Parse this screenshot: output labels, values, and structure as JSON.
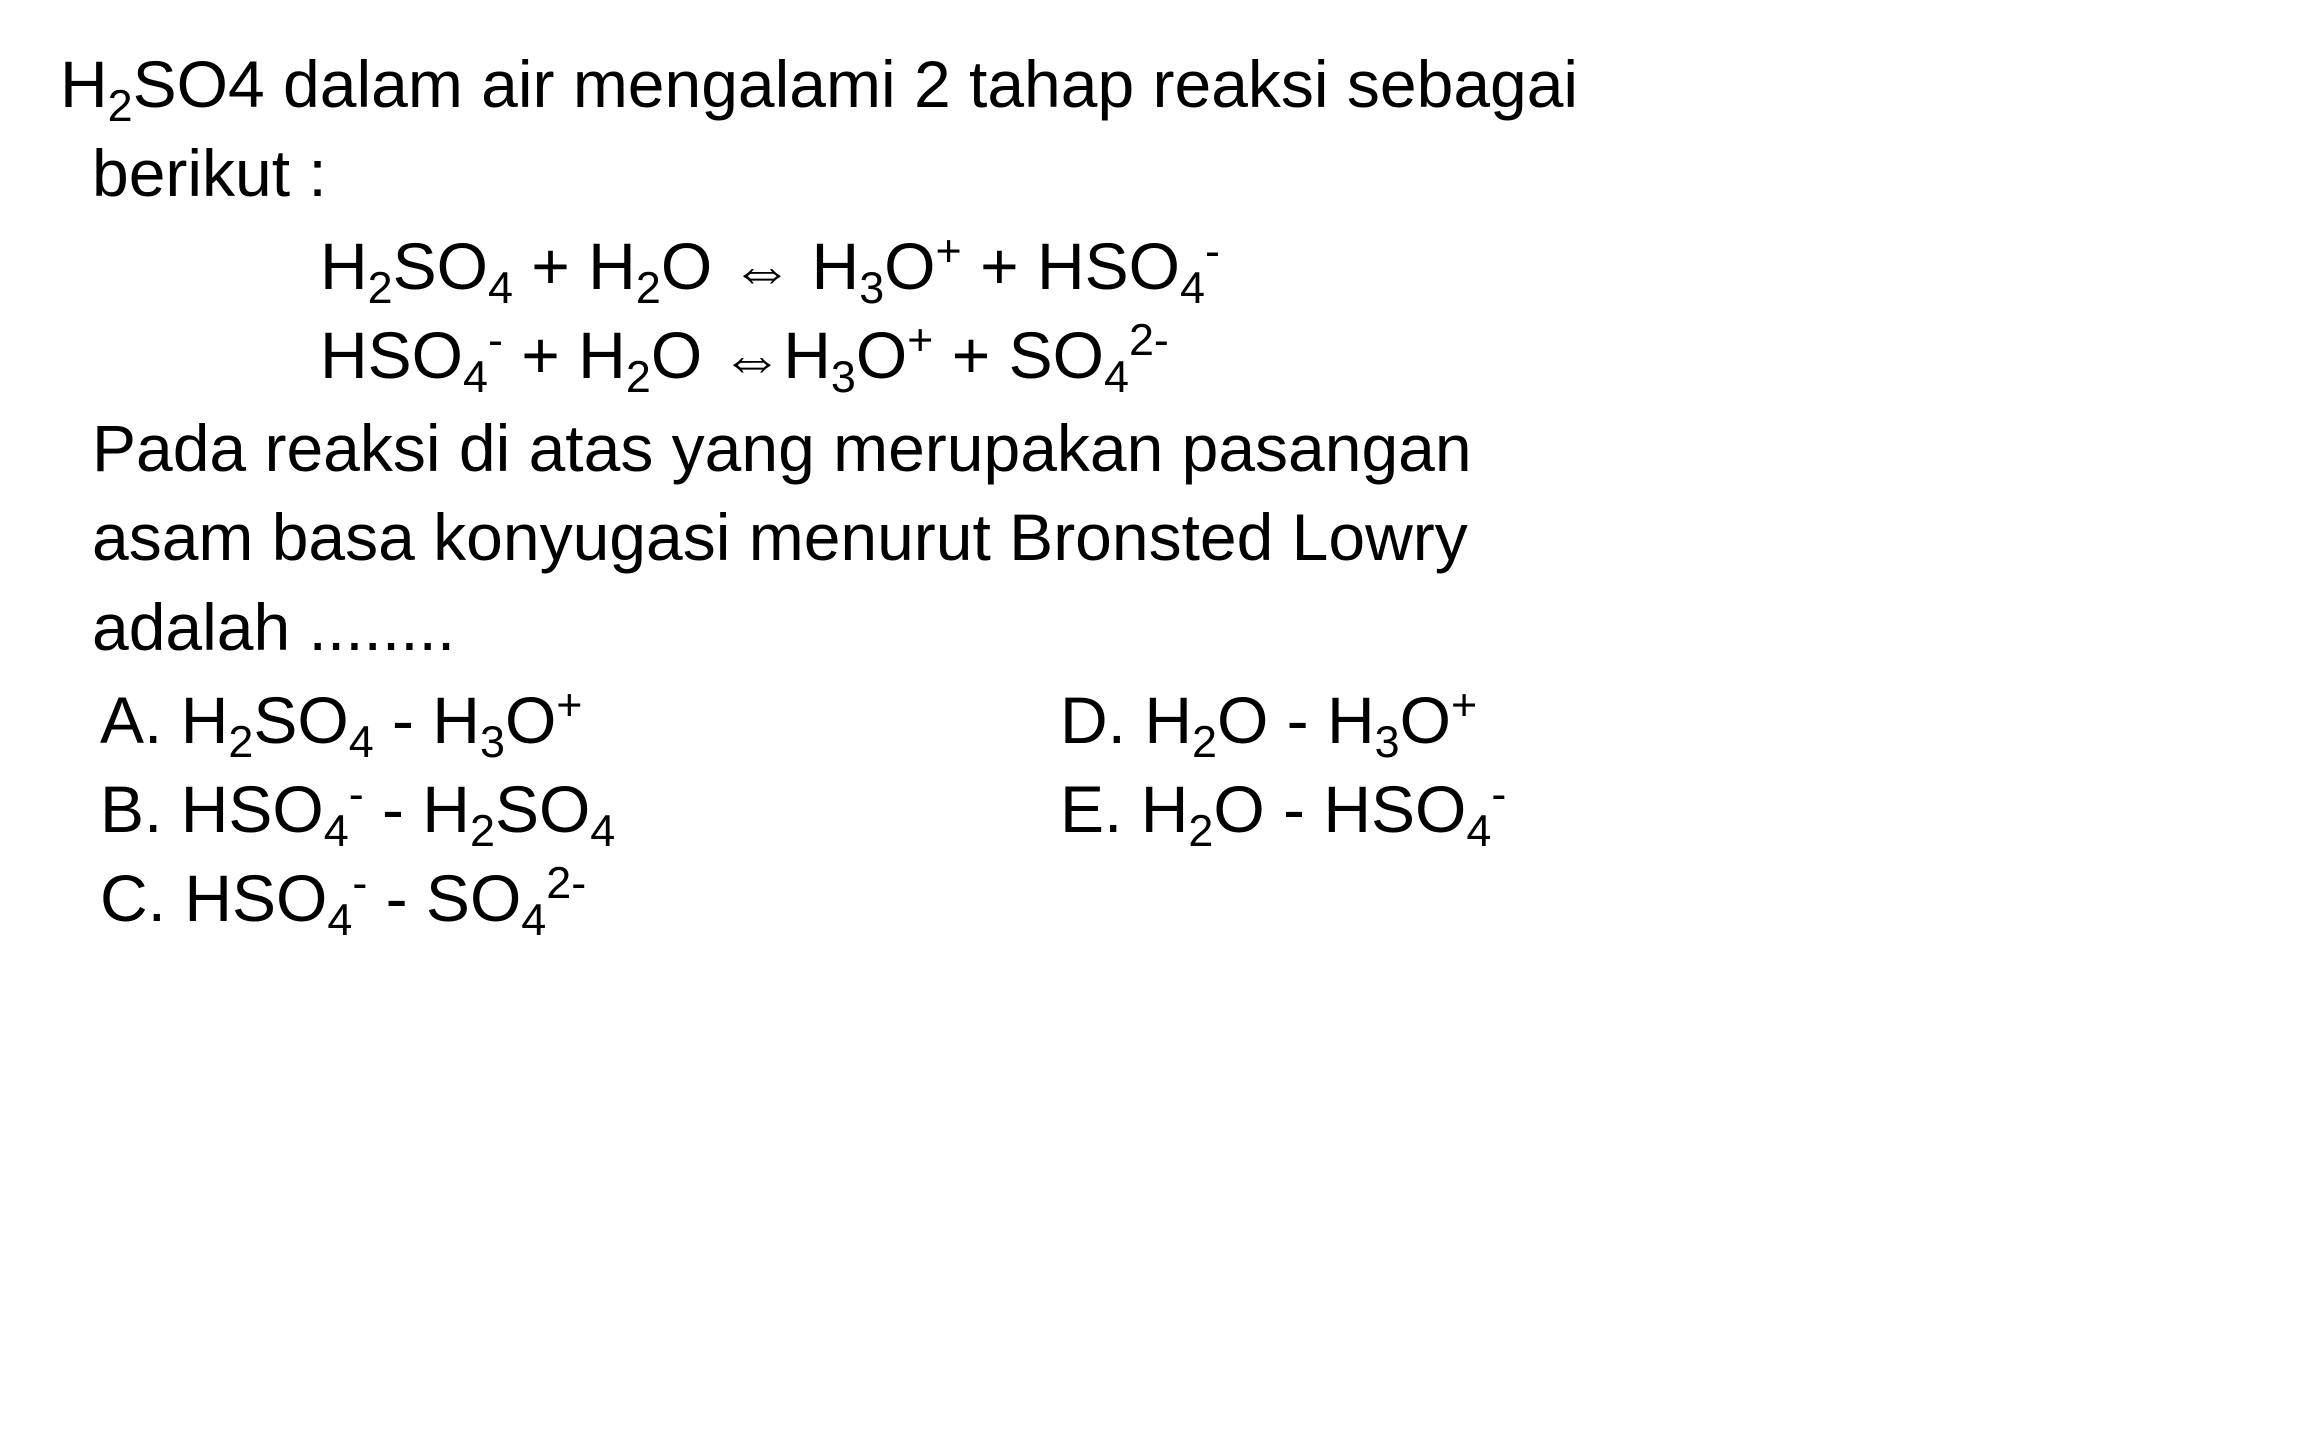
{
  "intro": {
    "line1_pre": "H",
    "line1_sub": "2",
    "line1_post": "SO4 dalam air mengalami 2 tahap reaksi sebagai",
    "line2": "berikut :"
  },
  "eq1": {
    "s1": "H",
    "s1sub": "2",
    "s2": "SO",
    "s2sub": "4",
    "s3": " + H",
    "s3sub": "2",
    "s4": "O  ",
    "arrow": "⇔",
    "s5": " H",
    "s5sub": "3",
    "s6": "O",
    "s6sup": "+",
    "s7": " + HSO",
    "s7sub": "4",
    "s7sup": "-"
  },
  "eq2": {
    "s1": "HSO",
    "s1sub": "4",
    "s1sup": "-",
    "s2": " + H",
    "s2sub": "2",
    "s3": "O  ",
    "arrow": "⇔",
    "s4": "H",
    "s4sub": "3",
    "s5": "O",
    "s5sup": "+",
    "s6": " + SO",
    "s6sub": "4",
    "s6sup": "2-"
  },
  "stem": {
    "l1": "Pada reaksi di atas yang merupakan pasangan",
    "l2": "asam basa konyugasi menurut Bronsted   Lowry",
    "l3": "adalah ........"
  },
  "optA": {
    "label": "A. H",
    "a1sub": "2",
    "a2": "SO",
    "a2sub": "4",
    "a3": " - H",
    "a3sub": "3",
    "a4": "O",
    "a4sup": "+"
  },
  "optB": {
    "label": "B. HSO",
    "b1sub": "4",
    "b1sup": "-",
    "b2": " - H",
    "b2sub": "2",
    "b3": "SO",
    "b3sub": "4"
  },
  "optC": {
    "label": "C. HSO",
    "c1sub": "4",
    "c1sup": "-",
    "c2": " - SO",
    "c2sub": "4",
    "c2sup": "2-"
  },
  "optD": {
    "label": "D. H",
    "d1sub": "2",
    "d2": "O - H",
    "d2sub": "3",
    "d3": "O",
    "d3sup": "+"
  },
  "optE": {
    "label": "E. H",
    "e1sub": "2",
    "e2": "O - HSO",
    "e2sub": "4",
    "e2sup": "-"
  },
  "colors": {
    "text": "#000000",
    "background": "#ffffff"
  }
}
